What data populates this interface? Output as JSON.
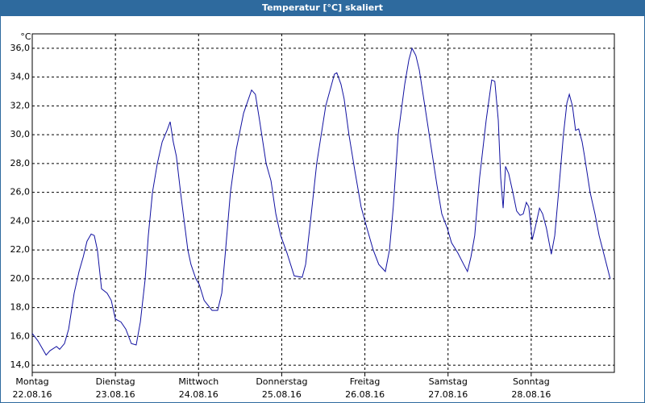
{
  "chart_data": {
    "type": "line",
    "title": "Temperatur [°C] skaliert",
    "y_unit": "°C",
    "color": "#1010a0",
    "grid": true,
    "xlim": [
      0,
      168
    ],
    "ylim": [
      13.5,
      37.0
    ],
    "xticks": [
      {
        "value": 0,
        "label": "Montag",
        "date": "22.08.16"
      },
      {
        "value": 24,
        "label": "Dienstag",
        "date": "23.08.16"
      },
      {
        "value": 48,
        "label": "Mittwoch",
        "date": "24.08.16"
      },
      {
        "value": 72,
        "label": "Donnerstag",
        "date": "25.08.16"
      },
      {
        "value": 96,
        "label": "Freitag",
        "date": "26.08.16"
      },
      {
        "value": 120,
        "label": "Samstag",
        "date": "27.08.16"
      },
      {
        "value": 144,
        "label": "Sonntag",
        "date": "28.08.16"
      }
    ],
    "yticks": [
      {
        "value": 14,
        "label": "14,0"
      },
      {
        "value": 16,
        "label": "16,0"
      },
      {
        "value": 18,
        "label": "18,0"
      },
      {
        "value": 20,
        "label": "20,0"
      },
      {
        "value": 22,
        "label": "22,0"
      },
      {
        "value": 24,
        "label": "24,0"
      },
      {
        "value": 26,
        "label": "26,0"
      },
      {
        "value": 28,
        "label": "28,0"
      },
      {
        "value": 30,
        "label": "30,0"
      },
      {
        "value": 32,
        "label": "32,0"
      },
      {
        "value": 34,
        "label": "34,0"
      },
      {
        "value": 36,
        "label": "36,0"
      }
    ],
    "x": [
      0,
      1.6,
      4.0,
      5.1,
      7.0,
      7.9,
      9.3,
      10.5,
      12.1,
      13.5,
      14.7,
      15.8,
      17.0,
      17.9,
      18.8,
      20.0,
      21.6,
      22.8,
      24.0,
      25.6,
      27.0,
      28.6,
      30.0,
      31.2,
      32.6,
      33.5,
      34.7,
      36.1,
      37.5,
      38.9,
      39.8,
      40.7,
      41.6,
      42.8,
      44.9,
      45.8,
      47.2,
      48.2,
      49.6,
      51.9,
      53.5,
      54.7,
      55.8,
      57.2,
      58.9,
      61.0,
      63.3,
      64.4,
      65.6,
      67.5,
      68.9,
      70.3,
      71.7,
      73.5,
      75.6,
      77.9,
      78.9,
      80.3,
      82.1,
      84.7,
      87.2,
      87.9,
      89.1,
      90.0,
      91.4,
      93.1,
      94.9,
      96.6,
      98.4,
      100.0,
      101.9,
      103.1,
      104.2,
      105.6,
      107.5,
      108.7,
      109.6,
      110.7,
      111.7,
      113.3,
      115.2,
      116.8,
      118.2,
      119.8,
      121.0,
      122.8,
      124.5,
      125.6,
      126.6,
      127.7,
      129.1,
      131.0,
      132.6,
      133.5,
      134.5,
      135.2,
      135.9,
      136.6,
      137.5,
      138.7,
      139.8,
      140.8,
      141.7,
      142.6,
      143.3,
      144.3,
      145.2,
      146.4,
      147.3,
      148.4,
      149.8,
      150.8,
      151.9,
      153.3,
      154.3,
      155.0,
      155.9,
      156.8,
      157.7,
      158.7,
      159.4,
      161.0,
      162.4,
      163.6,
      165.2,
      166.8
    ],
    "values": [
      16.2,
      15.7,
      14.7,
      15.0,
      15.3,
      15.1,
      15.5,
      16.5,
      19.0,
      20.5,
      21.5,
      22.6,
      23.1,
      23.0,
      22.0,
      19.3,
      19.0,
      18.5,
      17.2,
      17.0,
      16.5,
      15.5,
      15.4,
      17.0,
      20.0,
      23.0,
      26.0,
      28.0,
      29.5,
      30.3,
      30.9,
      29.5,
      28.5,
      26.0,
      22.0,
      21.0,
      20.0,
      19.6,
      18.5,
      17.8,
      17.8,
      19.0,
      22.0,
      26.0,
      29.0,
      31.5,
      33.1,
      32.8,
      31.0,
      28.0,
      26.8,
      24.5,
      23.0,
      21.8,
      20.2,
      20.1,
      21.0,
      24.0,
      28.0,
      32.0,
      34.2,
      34.3,
      33.5,
      32.5,
      30.0,
      27.5,
      25.0,
      23.5,
      22.0,
      21.0,
      20.5,
      22.0,
      25.0,
      30.0,
      33.5,
      35.2,
      36.0,
      35.5,
      34.5,
      32.0,
      29.0,
      26.5,
      24.5,
      23.5,
      22.5,
      21.8,
      21.0,
      20.5,
      21.5,
      23.0,
      27.0,
      31.0,
      33.8,
      33.7,
      31.0,
      27.0,
      24.9,
      27.8,
      27.3,
      26.0,
      24.7,
      24.4,
      24.5,
      25.3,
      25.0,
      22.7,
      23.6,
      24.9,
      24.5,
      23.5,
      21.7,
      23.0,
      26.0,
      30.0,
      32.2,
      32.8,
      32.0,
      30.3,
      30.4,
      29.5,
      28.5,
      26.0,
      24.5,
      23.0,
      21.5,
      20.0
    ]
  }
}
